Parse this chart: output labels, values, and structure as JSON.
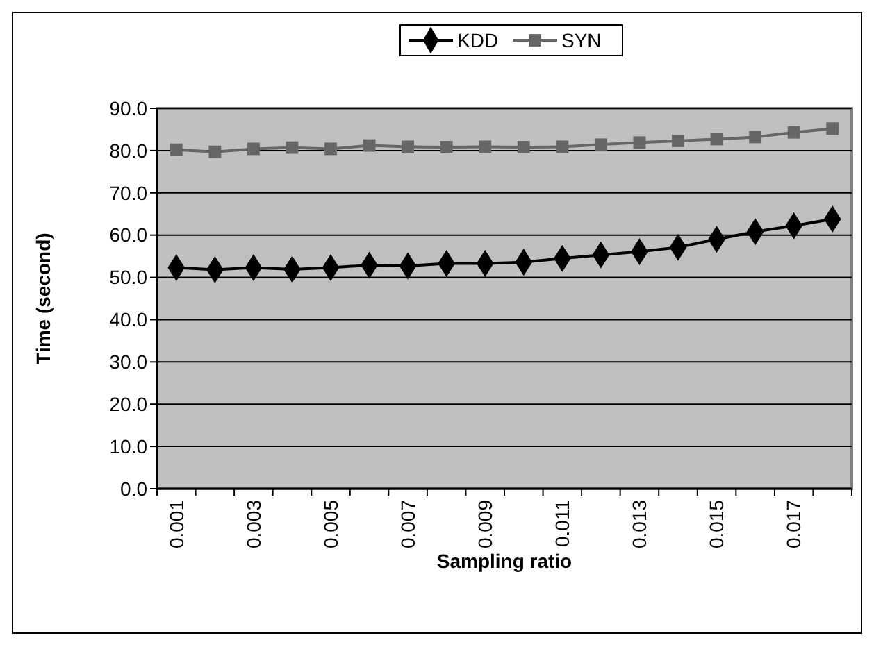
{
  "chart_data": {
    "type": "line",
    "xlabel": "Sampling ratio",
    "ylabel": "Time (second)",
    "categories": [
      "0.001",
      null,
      "0.003",
      null,
      "0.005",
      null,
      "0.007",
      null,
      "0.009",
      null,
      "0.011",
      null,
      "0.013",
      null,
      "0.015",
      null,
      "0.017",
      null
    ],
    "series": [
      {
        "name": "KDD",
        "color": "#000000",
        "marker": "diamond",
        "values": [
          52.3,
          51.8,
          52.3,
          51.9,
          52.3,
          52.9,
          52.7,
          53.3,
          53.3,
          53.6,
          54.5,
          55.3,
          56.1,
          57.1,
          59.0,
          60.8,
          62.2,
          63.8
        ]
      },
      {
        "name": "SYN",
        "color": "#666666",
        "marker": "square",
        "values": [
          80.2,
          79.7,
          80.4,
          80.7,
          80.4,
          81.2,
          80.9,
          80.8,
          80.9,
          80.8,
          80.9,
          81.4,
          81.9,
          82.3,
          82.7,
          83.2,
          84.3,
          85.2
        ]
      }
    ],
    "ylim": [
      0,
      90
    ],
    "yticks": [
      {
        "value": 0,
        "label": "0.0"
      },
      {
        "value": 10,
        "label": "10.0"
      },
      {
        "value": 20,
        "label": "20.0"
      },
      {
        "value": 30,
        "label": "30.0"
      },
      {
        "value": 40,
        "label": "40.0"
      },
      {
        "value": 50,
        "label": "50.0"
      },
      {
        "value": 60,
        "label": "60.0"
      },
      {
        "value": 70,
        "label": "70.0"
      },
      {
        "value": 80,
        "label": "80.0"
      },
      {
        "value": 90,
        "label": "90.0"
      }
    ],
    "grid": "y",
    "legend": "top",
    "line_style": "solid"
  }
}
